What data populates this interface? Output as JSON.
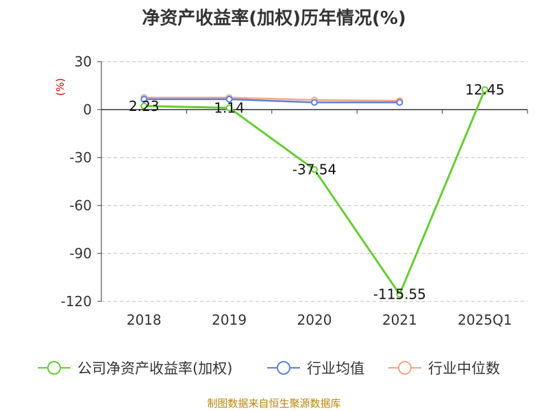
{
  "title": "净资产收益率(加权)历年情况(%)",
  "source": "制图数据来自恒生聚源数据库",
  "chart_data": {
    "type": "line",
    "title": "净资产收益率(加权)历年情况(%)",
    "ylabel": "(%)",
    "categories": [
      "2018",
      "2019",
      "2020",
      "2021",
      "2025Q1"
    ],
    "ylim": [
      -120,
      30
    ],
    "yticks": [
      30,
      0,
      -30,
      -60,
      -90,
      -120
    ],
    "grid": true,
    "legend_position": "bottom",
    "series": [
      {
        "name": "公司净资产收益率(加权)",
        "color": "#66cc33",
        "values": [
          2.23,
          1.14,
          -37.54,
          -115.55,
          12.45
        ],
        "labels": [
          "2.23",
          "1.14",
          "-37.54",
          "-115.55",
          "12.45"
        ]
      },
      {
        "name": "行业均值",
        "color": "#5b7fd6",
        "values": [
          6.5,
          6.5,
          4.5,
          4.5,
          null
        ]
      },
      {
        "name": "行业中位数",
        "color": "#f4a582",
        "values": [
          7.5,
          7.5,
          6.0,
          5.5,
          null
        ]
      }
    ]
  }
}
